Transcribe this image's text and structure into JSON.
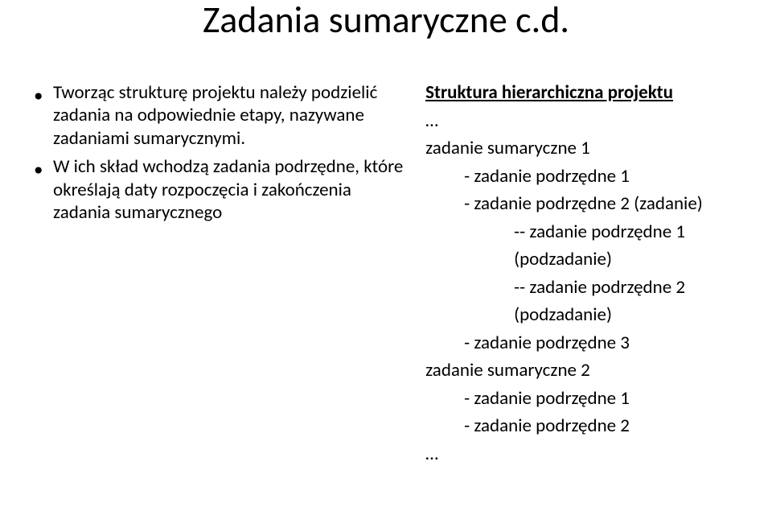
{
  "title": "Zadania sumaryczne c.d.",
  "left": {
    "bullets": [
      "Tworząc strukturę projektu należy podzielić zadania na odpowiednie etapy, nazywane zadaniami sumarycznymi.",
      "W ich skład wchodzą zadania podrzędne, które określają daty rozpoczęcia i zakończenia zadania sumarycznego"
    ]
  },
  "right": {
    "heading": "Struktura hierarchiczna projektu",
    "ellipsis": "…",
    "lines": [
      {
        "level": 0,
        "text": "zadanie sumaryczne 1"
      },
      {
        "level": 1,
        "text": "- zadanie podrzędne 1"
      },
      {
        "level": 1,
        "text": "- zadanie podrzędne 2 (zadanie)"
      },
      {
        "level": 2,
        "text": "-- zadanie podrzędne 1 (podzadanie)"
      },
      {
        "level": 2,
        "text": "-- zadanie podrzędne 2"
      },
      {
        "level": 2,
        "text": "(podzadanie)"
      },
      {
        "level": 1,
        "text": "- zadanie podrzędne 3"
      },
      {
        "level": 0,
        "text": "zadanie sumaryczne 2"
      },
      {
        "level": 1,
        "text": "- zadanie podrzędne 1"
      },
      {
        "level": 1,
        "text": "- zadanie podrzędne 2"
      }
    ],
    "ellipsis_end": "…"
  }
}
